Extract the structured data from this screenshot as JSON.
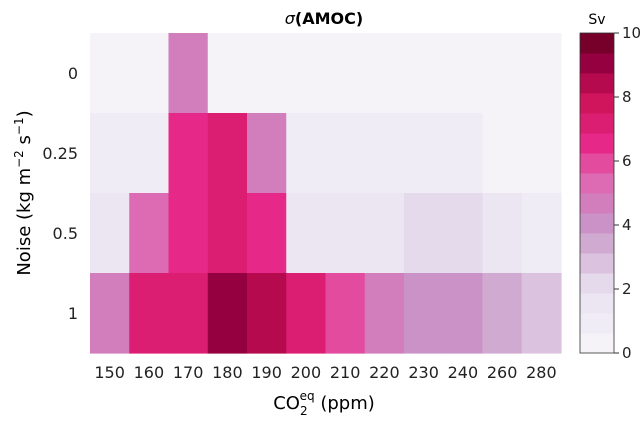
{
  "chart_data": {
    "type": "heatmap",
    "title_symbol": "σ",
    "title_text": "(AMOC)",
    "x_categories": [
      "150",
      "160",
      "170",
      "180",
      "190",
      "200",
      "210",
      "220",
      "230",
      "240",
      "260",
      "280"
    ],
    "y_categories": [
      "0",
      "0.25",
      "0.5",
      "1"
    ],
    "xlabel_base": "CO",
    "xlabel_sub": "2",
    "xlabel_sup": "eq",
    "xlabel_rest": " (ppm)",
    "ylabel_main": "Noise (kg m",
    "ylabel_sup1": "−2",
    "ylabel_mid": " s",
    "ylabel_sup2": "−1",
    "ylabel_end": ")",
    "colorbar_label": "Sv",
    "colorbar_range": [
      0,
      10
    ],
    "colorbar_ticks": [
      "0",
      "2",
      "4",
      "6",
      "8",
      "10"
    ],
    "colorbar_levels": 16,
    "values": [
      [
        0.2,
        0.2,
        4.9,
        0.2,
        0.2,
        0.2,
        0.2,
        0.2,
        0.2,
        0.2,
        0.2,
        0.2
      ],
      [
        0.9,
        0.9,
        6.3,
        7.0,
        4.6,
        0.9,
        0.9,
        0.9,
        0.9,
        0.9,
        0.2,
        0.2
      ],
      [
        1.3,
        5.3,
        6.8,
        7.4,
        6.8,
        1.3,
        1.3,
        1.3,
        2.1,
        2.1,
        1.3,
        0.9
      ],
      [
        4.6,
        6.9,
        7.4,
        9.0,
        8.2,
        7.4,
        6.2,
        4.9,
        4.2,
        4.2,
        3.5,
        2.7
      ]
    ]
  }
}
